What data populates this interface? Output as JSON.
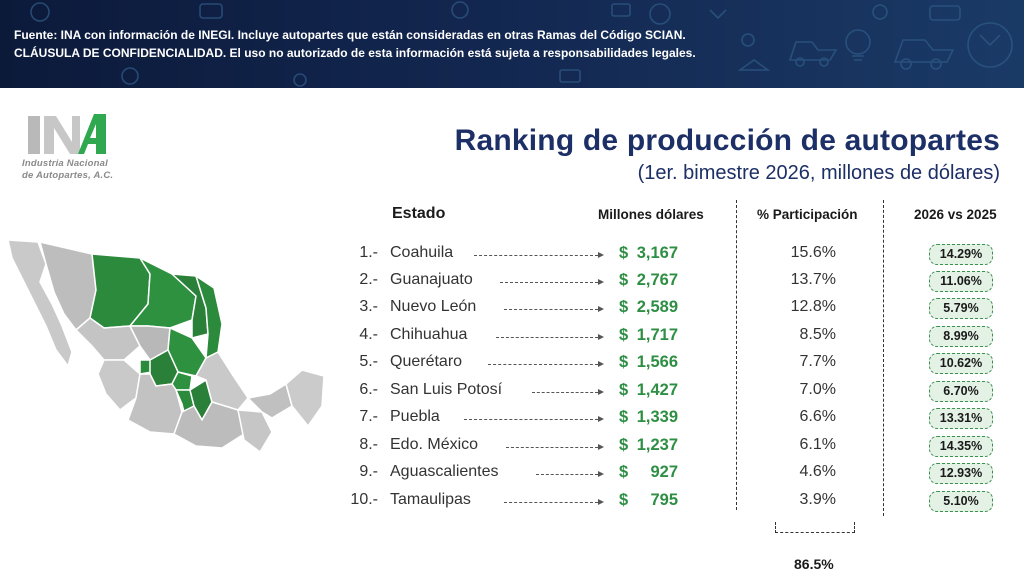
{
  "header": {
    "source_line": "Fuente: INA con información de INEGI. Incluye autopartes que están consideradas en otras Ramas del Código SCIAN.",
    "confidentiality_line": "CLÁUSULA DE CONFIDENCIALIDAD. El uso no autorizado de esta información está sujeta a responsabilidades legales."
  },
  "logo": {
    "org_line1": "Industria Nacional",
    "org_line2": "de Autopartes, A.C.",
    "colors": {
      "gray": "#b9b9b9",
      "green": "#2fa84f"
    }
  },
  "title": "Ranking de producción de autopartes",
  "subtitle": "(1er. bimestre 2026, millones de dólares)",
  "columns": {
    "estado": "Estado",
    "millones": "Millones dólares",
    "participacion": "% Participación",
    "variacion": "2026 vs 2025"
  },
  "currency_symbol": "$",
  "rows": [
    {
      "rank": "1.-",
      "state": "Coahuila",
      "value": "3,167",
      "share": "15.6%",
      "change": "14.29%"
    },
    {
      "rank": "2.-",
      "state": "Guanajuato",
      "value": "2,767",
      "share": "13.7%",
      "change": "11.06%"
    },
    {
      "rank": "3.-",
      "state": "Nuevo León",
      "value": "2,589",
      "share": "12.8%",
      "change": "5.79%"
    },
    {
      "rank": "4.-",
      "state": "Chihuahua",
      "value": "1,717",
      "share": "8.5%",
      "change": "8.99%"
    },
    {
      "rank": "5.-",
      "state": "Querétaro",
      "value": "1,566",
      "share": "7.7%",
      "change": "10.62%"
    },
    {
      "rank": "6.-",
      "state": "San Luis Potosí",
      "value": "1,427",
      "share": "7.0%",
      "change": "6.70%"
    },
    {
      "rank": "7.-",
      "state": "Puebla",
      "value": "1,339",
      "share": "6.6%",
      "change": "13.31%"
    },
    {
      "rank": "8.-",
      "state": "Edo. México",
      "value": "1,237",
      "share": "6.1%",
      "change": "14.35%"
    },
    {
      "rank": "9.-",
      "state": "Aguascalientes",
      "value": "927",
      "share": "4.6%",
      "change": "12.93%"
    },
    {
      "rank": "10.-",
      "state": "Tamaulipas",
      "value": "795",
      "share": "3.9%",
      "change": "5.10%"
    }
  ],
  "total_share": "86.5%",
  "colors": {
    "title": "#1c2f66",
    "value_green": "#2e8f44",
    "badge_bg": "#e4f2e6",
    "map_green": "#2c8a3c",
    "map_gray": "#c9c9c9"
  },
  "map_icon": "mexico-map-icon"
}
